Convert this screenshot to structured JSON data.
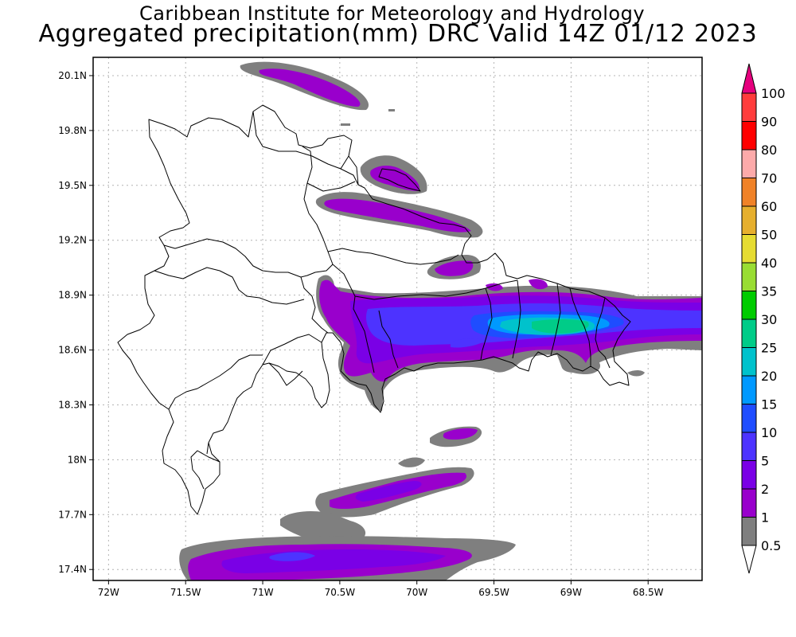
{
  "header": {
    "title_line1": "Caribbean Institute for Meteorology and Hydrology",
    "title_line2": "Aggregated precipitation(mm) DRC Valid 14Z 01/12 2023"
  },
  "map": {
    "lon_range": [
      -72.1,
      -68.15
    ],
    "lat_range": [
      17.34,
      20.2
    ],
    "lon_ticks": [
      {
        "v": -72,
        "label": "72W"
      },
      {
        "v": -71.5,
        "label": "71.5W"
      },
      {
        "v": -71,
        "label": "71W"
      },
      {
        "v": -70.5,
        "label": "70.5W"
      },
      {
        "v": -70,
        "label": "70W"
      },
      {
        "v": -69.5,
        "label": "69.5W"
      },
      {
        "v": -69,
        "label": "69W"
      },
      {
        "v": -68.5,
        "label": "68.5W"
      }
    ],
    "lat_ticks": [
      {
        "v": 20.1,
        "label": "20.1N"
      },
      {
        "v": 19.8,
        "label": "19.8N"
      },
      {
        "v": 19.5,
        "label": "19.5N"
      },
      {
        "v": 19.2,
        "label": "19.2N"
      },
      {
        "v": 18.9,
        "label": "18.9N"
      },
      {
        "v": 18.6,
        "label": "18.6N"
      },
      {
        "v": 18.3,
        "label": "18.3N"
      },
      {
        "v": 18.0,
        "label": "18N"
      },
      {
        "v": 17.7,
        "label": "17.7N"
      },
      {
        "v": 17.4,
        "label": "17.4N"
      }
    ],
    "grid": true
  },
  "colorbar": {
    "levels": [
      {
        "label": "0.5",
        "color": "#ffffff"
      },
      {
        "label": "1",
        "color": "#7f7f7f"
      },
      {
        "label": "2",
        "color": "#9900cc"
      },
      {
        "label": "5",
        "color": "#7a00e6"
      },
      {
        "label": "10",
        "color": "#4d33ff"
      },
      {
        "label": "15",
        "color": "#1f4dff"
      },
      {
        "label": "20",
        "color": "#0099ff"
      },
      {
        "label": "25",
        "color": "#00c2cc"
      },
      {
        "label": "30",
        "color": "#00cc88"
      },
      {
        "label": "35",
        "color": "#00cc00"
      },
      {
        "label": "40",
        "color": "#99dd33"
      },
      {
        "label": "50",
        "color": "#e6dc32"
      },
      {
        "label": "60",
        "color": "#e6af2e"
      },
      {
        "label": "70",
        "color": "#f08228"
      },
      {
        "label": "80",
        "color": "#fcaaaa"
      },
      {
        "label": "90",
        "color": "#ff0000"
      },
      {
        "label": "100",
        "color": "#ff3c3c"
      }
    ],
    "top_arrow_color": "#e6007e"
  }
}
